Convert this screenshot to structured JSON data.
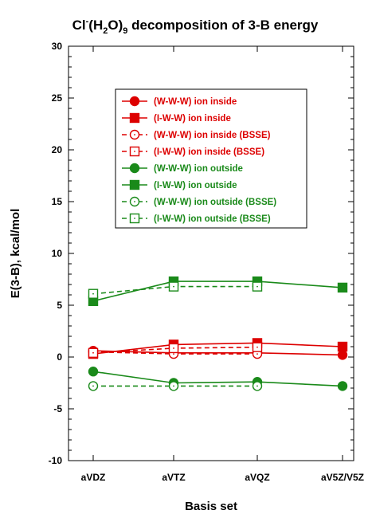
{
  "chart_data": {
    "type": "line",
    "title": {
      "prefix": "Cl",
      "sup": "-",
      "mid1": "(H",
      "sub1": "2",
      "mid2": "O)",
      "sub2": "9",
      "suffix": " decomposition of 3-B energy"
    },
    "xlabel": "Basis set",
    "ylabel": "E(3-B), kcal/mol",
    "categories": [
      "aVDZ",
      "aVTZ",
      "aVQZ",
      "aV5Z/V5Z"
    ],
    "ylim": [
      -10,
      30
    ],
    "yticks": [
      -10,
      -5,
      0,
      5,
      10,
      15,
      20,
      25,
      30
    ],
    "legend_position": "upper-center",
    "grid": false,
    "series": [
      {
        "name": "(W-W-W) ion inside",
        "color": "#dd0000",
        "marker": "circle",
        "filled": true,
        "dashed": false,
        "values": [
          0.6,
          0.4,
          0.4,
          0.2
        ]
      },
      {
        "name": "(I-W-W) ion inside",
        "color": "#dd0000",
        "marker": "square",
        "filled": true,
        "dashed": false,
        "values": [
          0.3,
          1.2,
          1.35,
          1.0
        ]
      },
      {
        "name": "(W-W-W) ion inside (BSSE)",
        "color": "#dd0000",
        "marker": "circle",
        "filled": false,
        "dashed": true,
        "values": [
          0.5,
          0.3,
          0.3,
          null
        ]
      },
      {
        "name": "(I-W-W) ion inside (BSSE)",
        "color": "#dd0000",
        "marker": "square",
        "filled": false,
        "dashed": true,
        "values": [
          0.4,
          0.85,
          0.95,
          null
        ]
      },
      {
        "name": "(W-W-W) ion outside",
        "color": "#1a8a1a",
        "marker": "circle",
        "filled": true,
        "dashed": false,
        "values": [
          -1.4,
          -2.5,
          -2.4,
          -2.8
        ]
      },
      {
        "name": "(I-W-W) ion outside",
        "color": "#1a8a1a",
        "marker": "square",
        "filled": true,
        "dashed": false,
        "values": [
          5.4,
          7.3,
          7.3,
          6.7
        ]
      },
      {
        "name": "(W-W-W) ion outside (BSSE)",
        "color": "#1a8a1a",
        "marker": "circle",
        "filled": false,
        "dashed": true,
        "values": [
          -2.8,
          -2.8,
          -2.8,
          null
        ]
      },
      {
        "name": "(I-W-W) ion outside (BSSE)",
        "color": "#1a8a1a",
        "marker": "square",
        "filled": false,
        "dashed": true,
        "values": [
          6.1,
          6.8,
          6.8,
          null
        ]
      }
    ]
  }
}
